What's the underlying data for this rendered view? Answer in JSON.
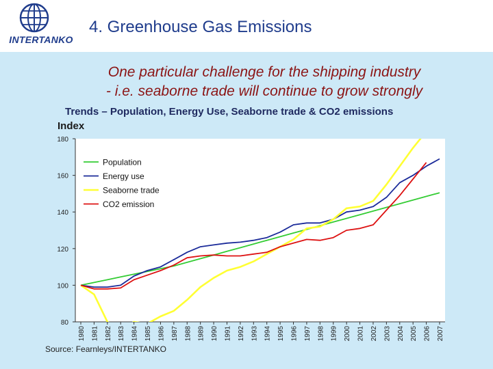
{
  "header": {
    "logo_text": "INTERTANKO",
    "title": "4. Greenhouse Gas Emissions"
  },
  "subtitle": {
    "line1": "One particular challenge for the shipping industry",
    "line2": "- i.e. seaborne trade will continue to grow strongly"
  },
  "colors": {
    "background": "#cde9f7",
    "title": "#1f3c8c",
    "subtitle": "#8b1414",
    "population": "#33cc33",
    "energy": "#1a2a99",
    "seaborne": "#ffff33",
    "co2": "#dd1111"
  },
  "chart_data": {
    "type": "line",
    "title": "Trends – Population, Energy Use, Seaborne trade & CO2 emissions",
    "xlabel": "",
    "ylabel": "Index",
    "x": [
      "1980",
      "1981",
      "1982",
      "1983",
      "1984",
      "1985",
      "1986",
      "1987",
      "1988",
      "1989",
      "1990",
      "1991",
      "1992",
      "1993",
      "1994",
      "1995",
      "1996",
      "1997",
      "1998",
      "1999",
      "2000",
      "2001",
      "2002",
      "2003",
      "2004",
      "2005",
      "2006",
      "2007"
    ],
    "ylim": [
      80,
      180
    ],
    "yticks": [
      80,
      100,
      120,
      140,
      160,
      180
    ],
    "grid": false,
    "legend": "top-left",
    "series": [
      {
        "name": "Population",
        "color": "#33cc33",
        "values": [
          100,
          101.5,
          103,
          104.5,
          106,
          107.5,
          109,
          110.5,
          112.5,
          114.5,
          116.5,
          118.5,
          120.5,
          122.5,
          124.5,
          126.5,
          128.5,
          130.5,
          132.5,
          134.5,
          136.5,
          138.5,
          140.5,
          142.5,
          144.5,
          146.5,
          148.5,
          150.5
        ]
      },
      {
        "name": "Energy use",
        "color": "#1a2a99",
        "values": [
          100,
          99,
          99,
          100,
          105,
          108,
          110,
          114,
          118,
          121,
          122,
          123,
          123.5,
          124.5,
          126,
          129,
          133,
          134,
          134,
          136,
          140,
          141,
          143,
          148,
          156,
          160,
          165,
          169
        ]
      },
      {
        "name": "Seaborne trade",
        "color": "#ffff33",
        "values": [
          100,
          95,
          80,
          76,
          80,
          79,
          83,
          86,
          92,
          99,
          104,
          108,
          110,
          113,
          117,
          121,
          125,
          131,
          132,
          136,
          142,
          143,
          146,
          155,
          165,
          175,
          184,
          190
        ]
      },
      {
        "name": "CO2 emission",
        "color": "#dd1111",
        "values": [
          100,
          98,
          98,
          98.5,
          103,
          105.5,
          108,
          111,
          115,
          116,
          116.5,
          116,
          116,
          117,
          118,
          121,
          123,
          125,
          124.5,
          126,
          130,
          131,
          133,
          141,
          149,
          158,
          167,
          null
        ]
      }
    ]
  },
  "source": "Source: Fearnleys/INTERTANKO"
}
